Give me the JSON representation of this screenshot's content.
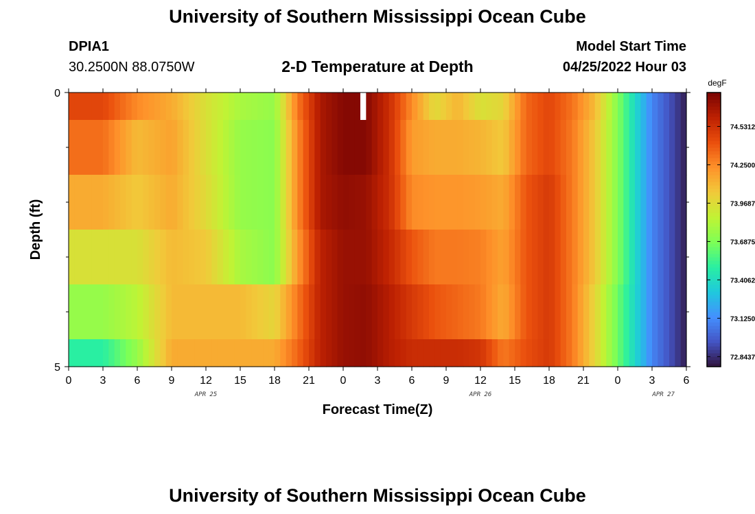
{
  "header": {
    "title": "University of Southern Mississippi Ocean Cube",
    "station_id": "DPIA1",
    "station_coords": "30.2500N  88.0750W",
    "subtitle": "2-D Temperature at Depth",
    "model_label": "Model Start Time",
    "model_time": "04/25/2022 Hour 03"
  },
  "footer": {
    "title": "University of Southern Mississippi Ocean Cube"
  },
  "colors": {
    "colormap": [
      "#30123b",
      "#4454c4",
      "#4490fe",
      "#1fc8de",
      "#29efa2",
      "#7dff56",
      "#c1f334",
      "#f1ca3a",
      "#fe922a",
      "#ea4f0d",
      "#be2102",
      "#7a0403"
    ],
    "gap_marker": "#ffffff"
  },
  "chart_data": {
    "type": "heatmap",
    "title": "2-D Temperature at Depth",
    "xlabel": "Forecast Time(Z)",
    "ylabel": "Depth (ft)",
    "x_tick_labels": [
      "0",
      "3",
      "6",
      "9",
      "12",
      "15",
      "18",
      "21",
      "0",
      "3",
      "6",
      "9",
      "12",
      "15",
      "18",
      "21",
      "0",
      "3",
      "6"
    ],
    "day_labels": [
      {
        "label": "APR 25",
        "hour": 12
      },
      {
        "label": "APR 26",
        "hour": 36
      },
      {
        "label": "APR 27",
        "hour": 52
      }
    ],
    "x_range_hours": [
      0,
      54
    ],
    "x_step_hours": 0.5,
    "y_tick_labels": [
      "0",
      "5"
    ],
    "ylim": [
      0,
      5
    ],
    "y_minor_ticks": [
      1,
      2,
      3,
      4
    ],
    "depth_bands_ft": [
      [
        0,
        0.5
      ],
      [
        0.5,
        1.5
      ],
      [
        1.5,
        2.5
      ],
      [
        2.5,
        3.5
      ],
      [
        3.5,
        4.5
      ],
      [
        4.5,
        5
      ]
    ],
    "missing": [
      {
        "band": 0,
        "hour_from": 25.5,
        "hour_to": 26
      }
    ],
    "colorbar": {
      "unit": "degF",
      "tick_labels": [
        "74.5312",
        "74.2500",
        "73.9687",
        "73.6875",
        "73.4062",
        "73.1250",
        "72.8437"
      ],
      "tick_values": [
        74.53125,
        74.25,
        73.96875,
        73.6875,
        73.40625,
        73.125,
        72.84375
      ],
      "range": [
        72.77,
        74.78
      ]
    },
    "series": [
      {
        "band": 0,
        "hours": [
          0,
          3,
          6,
          9,
          12,
          15,
          18,
          20,
          22,
          24,
          26,
          28,
          30,
          32,
          34,
          36,
          38,
          40,
          42,
          44,
          46,
          48,
          50,
          51,
          52,
          53,
          54
        ],
        "values": [
          74.45,
          74.45,
          74.25,
          74.15,
          73.95,
          73.8,
          73.75,
          74.3,
          74.65,
          74.75,
          74.75,
          74.55,
          74.25,
          73.98,
          74.12,
          73.95,
          74.0,
          74.35,
          74.45,
          74.32,
          74.1,
          73.7,
          73.3,
          73.1,
          73.0,
          72.9,
          72.8
        ]
      },
      {
        "band": 1,
        "hours": [
          0,
          3,
          6,
          9,
          12,
          15,
          18,
          20,
          22,
          24,
          26,
          28,
          30,
          32,
          34,
          36,
          38,
          40,
          42,
          44,
          46,
          48,
          50,
          51,
          52,
          53,
          54
        ],
        "values": [
          74.33,
          74.33,
          74.1,
          74.18,
          73.96,
          73.75,
          73.72,
          74.25,
          74.65,
          74.75,
          74.75,
          74.55,
          74.2,
          74.15,
          74.15,
          74.12,
          74.05,
          74.35,
          74.45,
          74.3,
          74.05,
          73.7,
          73.3,
          73.1,
          73.0,
          72.9,
          72.8
        ]
      },
      {
        "band": 2,
        "hours": [
          0,
          3,
          6,
          9,
          12,
          15,
          18,
          20,
          22,
          24,
          26,
          28,
          30,
          32,
          34,
          36,
          38,
          40,
          42,
          44,
          46,
          48,
          50,
          51,
          52,
          53,
          54
        ],
        "values": [
          74.15,
          74.15,
          74.05,
          74.15,
          73.98,
          73.75,
          73.72,
          74.25,
          74.65,
          74.72,
          74.7,
          74.55,
          74.25,
          74.22,
          74.22,
          74.2,
          74.15,
          74.4,
          74.5,
          74.3,
          74.05,
          73.7,
          73.3,
          73.1,
          73.0,
          72.9,
          72.8
        ]
      },
      {
        "band": 3,
        "hours": [
          0,
          3,
          6,
          9,
          12,
          15,
          18,
          20,
          22,
          24,
          26,
          28,
          30,
          32,
          34,
          36,
          38,
          40,
          42,
          44,
          46,
          48,
          50,
          51,
          52,
          53,
          54
        ],
        "values": [
          73.95,
          73.95,
          73.95,
          74.1,
          74.05,
          73.8,
          73.72,
          74.2,
          74.6,
          74.7,
          74.7,
          74.58,
          74.4,
          74.3,
          74.3,
          74.28,
          74.18,
          74.4,
          74.5,
          74.3,
          74.05,
          73.7,
          73.3,
          73.1,
          73.0,
          72.9,
          72.8
        ]
      },
      {
        "band": 4,
        "hours": [
          0,
          3,
          6,
          9,
          12,
          15,
          18,
          20,
          22,
          24,
          26,
          28,
          30,
          32,
          34,
          36,
          38,
          40,
          42,
          44,
          46,
          48,
          50,
          51,
          52,
          53,
          54
        ],
        "values": [
          73.75,
          73.75,
          73.85,
          74.1,
          74.1,
          74.1,
          74.0,
          74.3,
          74.6,
          74.7,
          74.72,
          74.62,
          74.5,
          74.4,
          74.35,
          74.3,
          74.15,
          74.4,
          74.5,
          74.3,
          74.0,
          73.65,
          73.3,
          73.1,
          73.0,
          72.9,
          72.8
        ]
      },
      {
        "band": 5,
        "hours": [
          0,
          3,
          6,
          9,
          12,
          15,
          18,
          20,
          22,
          24,
          26,
          28,
          30,
          32,
          34,
          36,
          38,
          40,
          42,
          44,
          46,
          48,
          50,
          51,
          52,
          53,
          54
        ],
        "values": [
          73.5,
          73.5,
          73.75,
          74.15,
          74.15,
          74.15,
          74.15,
          74.35,
          74.6,
          74.7,
          74.72,
          74.62,
          74.55,
          74.55,
          74.55,
          74.52,
          74.3,
          74.42,
          74.5,
          74.3,
          74.0,
          73.65,
          73.3,
          73.1,
          73.0,
          72.9,
          72.8
        ]
      }
    ]
  }
}
